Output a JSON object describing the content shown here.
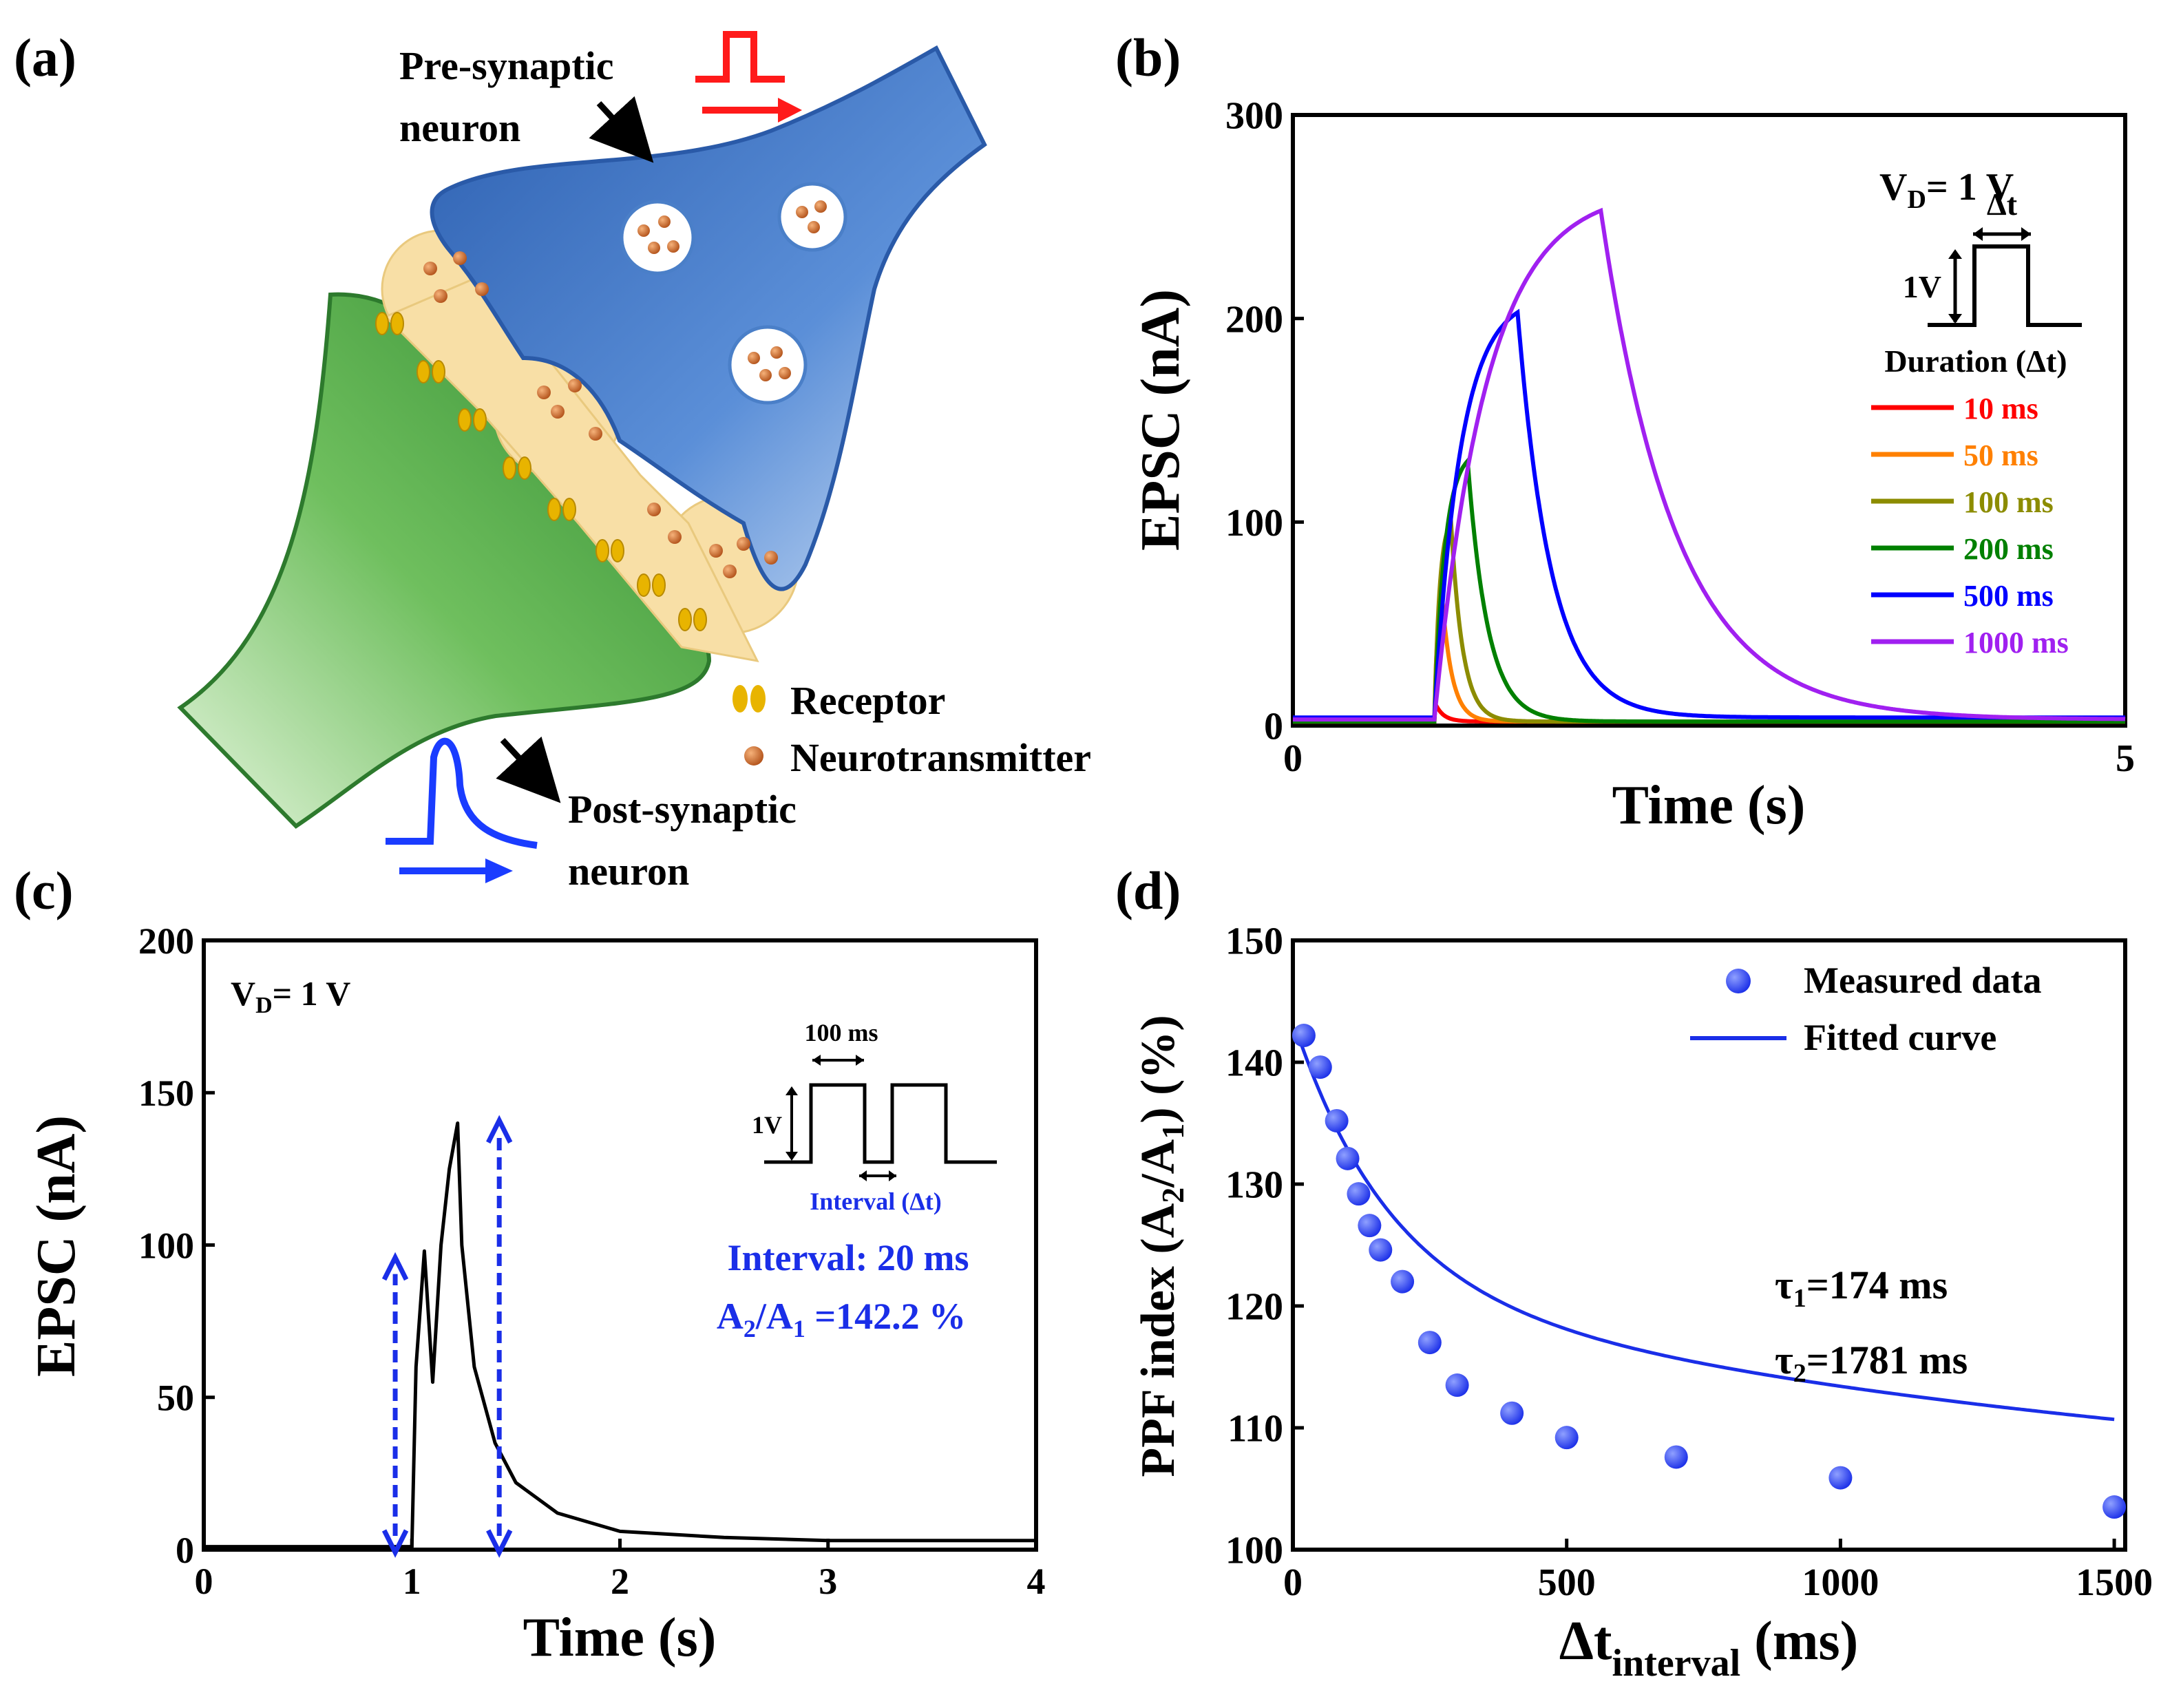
{
  "panels": {
    "a": {
      "label": "(a)",
      "pre_label_1": "Pre-synaptic",
      "pre_label_2": "neuron",
      "post_label_1": "Post-synaptic",
      "post_label_2": "neuron",
      "legend_receptor": "Receptor",
      "legend_neurotransmitter": "Neurotransmitter",
      "colors": {
        "pre": "#3d74c4",
        "post": "#3f9b3f",
        "cleft": "#f8dfa6",
        "particle": "#c8641e",
        "receptor": "#e8b400",
        "spike_red": "#ff1a1a",
        "spike_blue": "#1a3cff"
      }
    },
    "b": {
      "label": "(b)"
    },
    "c": {
      "label": "(c)"
    },
    "d": {
      "label": "(d)"
    }
  },
  "chart_data": [
    {
      "panel": "b",
      "type": "line",
      "xlabel": "Time (s)",
      "ylabel": "EPSC (nA)",
      "xlim": [
        0,
        5
      ],
      "ylim": [
        0,
        300
      ],
      "xticks": [
        0,
        5
      ],
      "yticks": [
        0,
        100,
        200,
        300
      ],
      "annotation_vd": "V",
      "annotation_vd_sub": "D",
      "annotation_vd_val": "= 1 V",
      "inset_dt": "Δt",
      "inset_amp": "1V",
      "legend_title": "Duration (Δt)",
      "series": [
        {
          "name": "10 ms",
          "color": "#ff0000",
          "start": 0.85,
          "duration": 0.01,
          "peak": 10,
          "tau": 0.05,
          "base": 2
        },
        {
          "name": "50 ms",
          "color": "#ff8000",
          "start": 0.85,
          "duration": 0.05,
          "peak": 60,
          "tau": 0.06,
          "base": 2
        },
        {
          "name": "100 ms",
          "color": "#8c8c00",
          "start": 0.85,
          "duration": 0.1,
          "peak": 100,
          "tau": 0.07,
          "base": 2
        },
        {
          "name": "200 ms",
          "color": "#008000",
          "start": 0.85,
          "duration": 0.2,
          "peak": 130,
          "tau": 0.12,
          "base": 2
        },
        {
          "name": "500 ms",
          "color": "#0000ff",
          "start": 0.85,
          "duration": 0.5,
          "peak": 203,
          "tau": 0.2,
          "base": 4
        },
        {
          "name": "1000 ms",
          "color": "#a020f0",
          "start": 0.85,
          "duration": 1.0,
          "peak": 253,
          "tau": 0.45,
          "base": 3
        }
      ]
    },
    {
      "panel": "c",
      "type": "line",
      "xlabel": "Time (s)",
      "ylabel": "EPSC (nA)",
      "xlim": [
        0,
        4
      ],
      "ylim": [
        0,
        200
      ],
      "xticks": [
        0,
        1,
        2,
        3,
        4
      ],
      "yticks": [
        0,
        50,
        100,
        150,
        200
      ],
      "annotation_vd": "V",
      "annotation_vd_sub": "D",
      "annotation_vd_val": "= 1 V",
      "inset_width": "100 ms",
      "inset_amp": "1V",
      "inset_interval": "Interval (Δt)",
      "interval_text": "Interval: 20 ms",
      "ratio_a2": "A",
      "ratio_sub2": "2",
      "ratio_slash": "/A",
      "ratio_sub1": "1",
      "ratio_val": " =142.2 %",
      "series": [
        {
          "name": "EPSC",
          "color": "#000000",
          "x": [
            0,
            0.9,
            1.0,
            1.02,
            1.06,
            1.1,
            1.14,
            1.18,
            1.22,
            1.24,
            1.3,
            1.4,
            1.5,
            1.7,
            2.0,
            2.5,
            3.0,
            4.0
          ],
          "y": [
            1,
            1,
            1,
            60,
            98,
            55,
            100,
            125,
            140,
            100,
            60,
            35,
            22,
            12,
            6,
            4,
            3,
            3
          ]
        }
      ],
      "arrows_x": [
        0.92,
        1.42
      ],
      "arrows_y": [
        0,
        95,
        0,
        140
      ]
    },
    {
      "panel": "d",
      "type": "scatter",
      "xlabel": "Δt",
      "xlabel_sub": "interval",
      "xlabel_unit": " (ms)",
      "ylabel": "PPF index (A",
      "ylabel_sub2": "2",
      "ylabel_mid": "/A",
      "ylabel_sub1": "1",
      "ylabel_end": ") (%)",
      "xlim": [
        0,
        1520
      ],
      "ylim": [
        100,
        150
      ],
      "xticks": [
        0,
        500,
        1000,
        1500
      ],
      "yticks": [
        100,
        110,
        120,
        130,
        140,
        150
      ],
      "legend": [
        "Measured data",
        "Fitted curve"
      ],
      "tau1_sym": "τ",
      "tau1_sub": "1",
      "tau1_val": "=174 ms",
      "tau2_sym": "τ",
      "tau2_sub": "2",
      "tau2_val": "=1781 ms",
      "color": "#1a2ee8",
      "series": [
        {
          "name": "Measured data",
          "x": [
            20,
            50,
            80,
            100,
            120,
            140,
            160,
            200,
            250,
            300,
            400,
            500,
            700,
            1000,
            1500
          ],
          "y": [
            142.2,
            139.6,
            135.2,
            132.1,
            129.2,
            126.6,
            124.6,
            122.0,
            117.0,
            113.5,
            111.2,
            109.2,
            107.6,
            105.9,
            103.5
          ]
        }
      ],
      "fit": {
        "y0": 102.5,
        "a1": 22,
        "tau1": 174,
        "a2": 19,
        "tau2": 1781,
        "x_start": 15
      }
    }
  ]
}
